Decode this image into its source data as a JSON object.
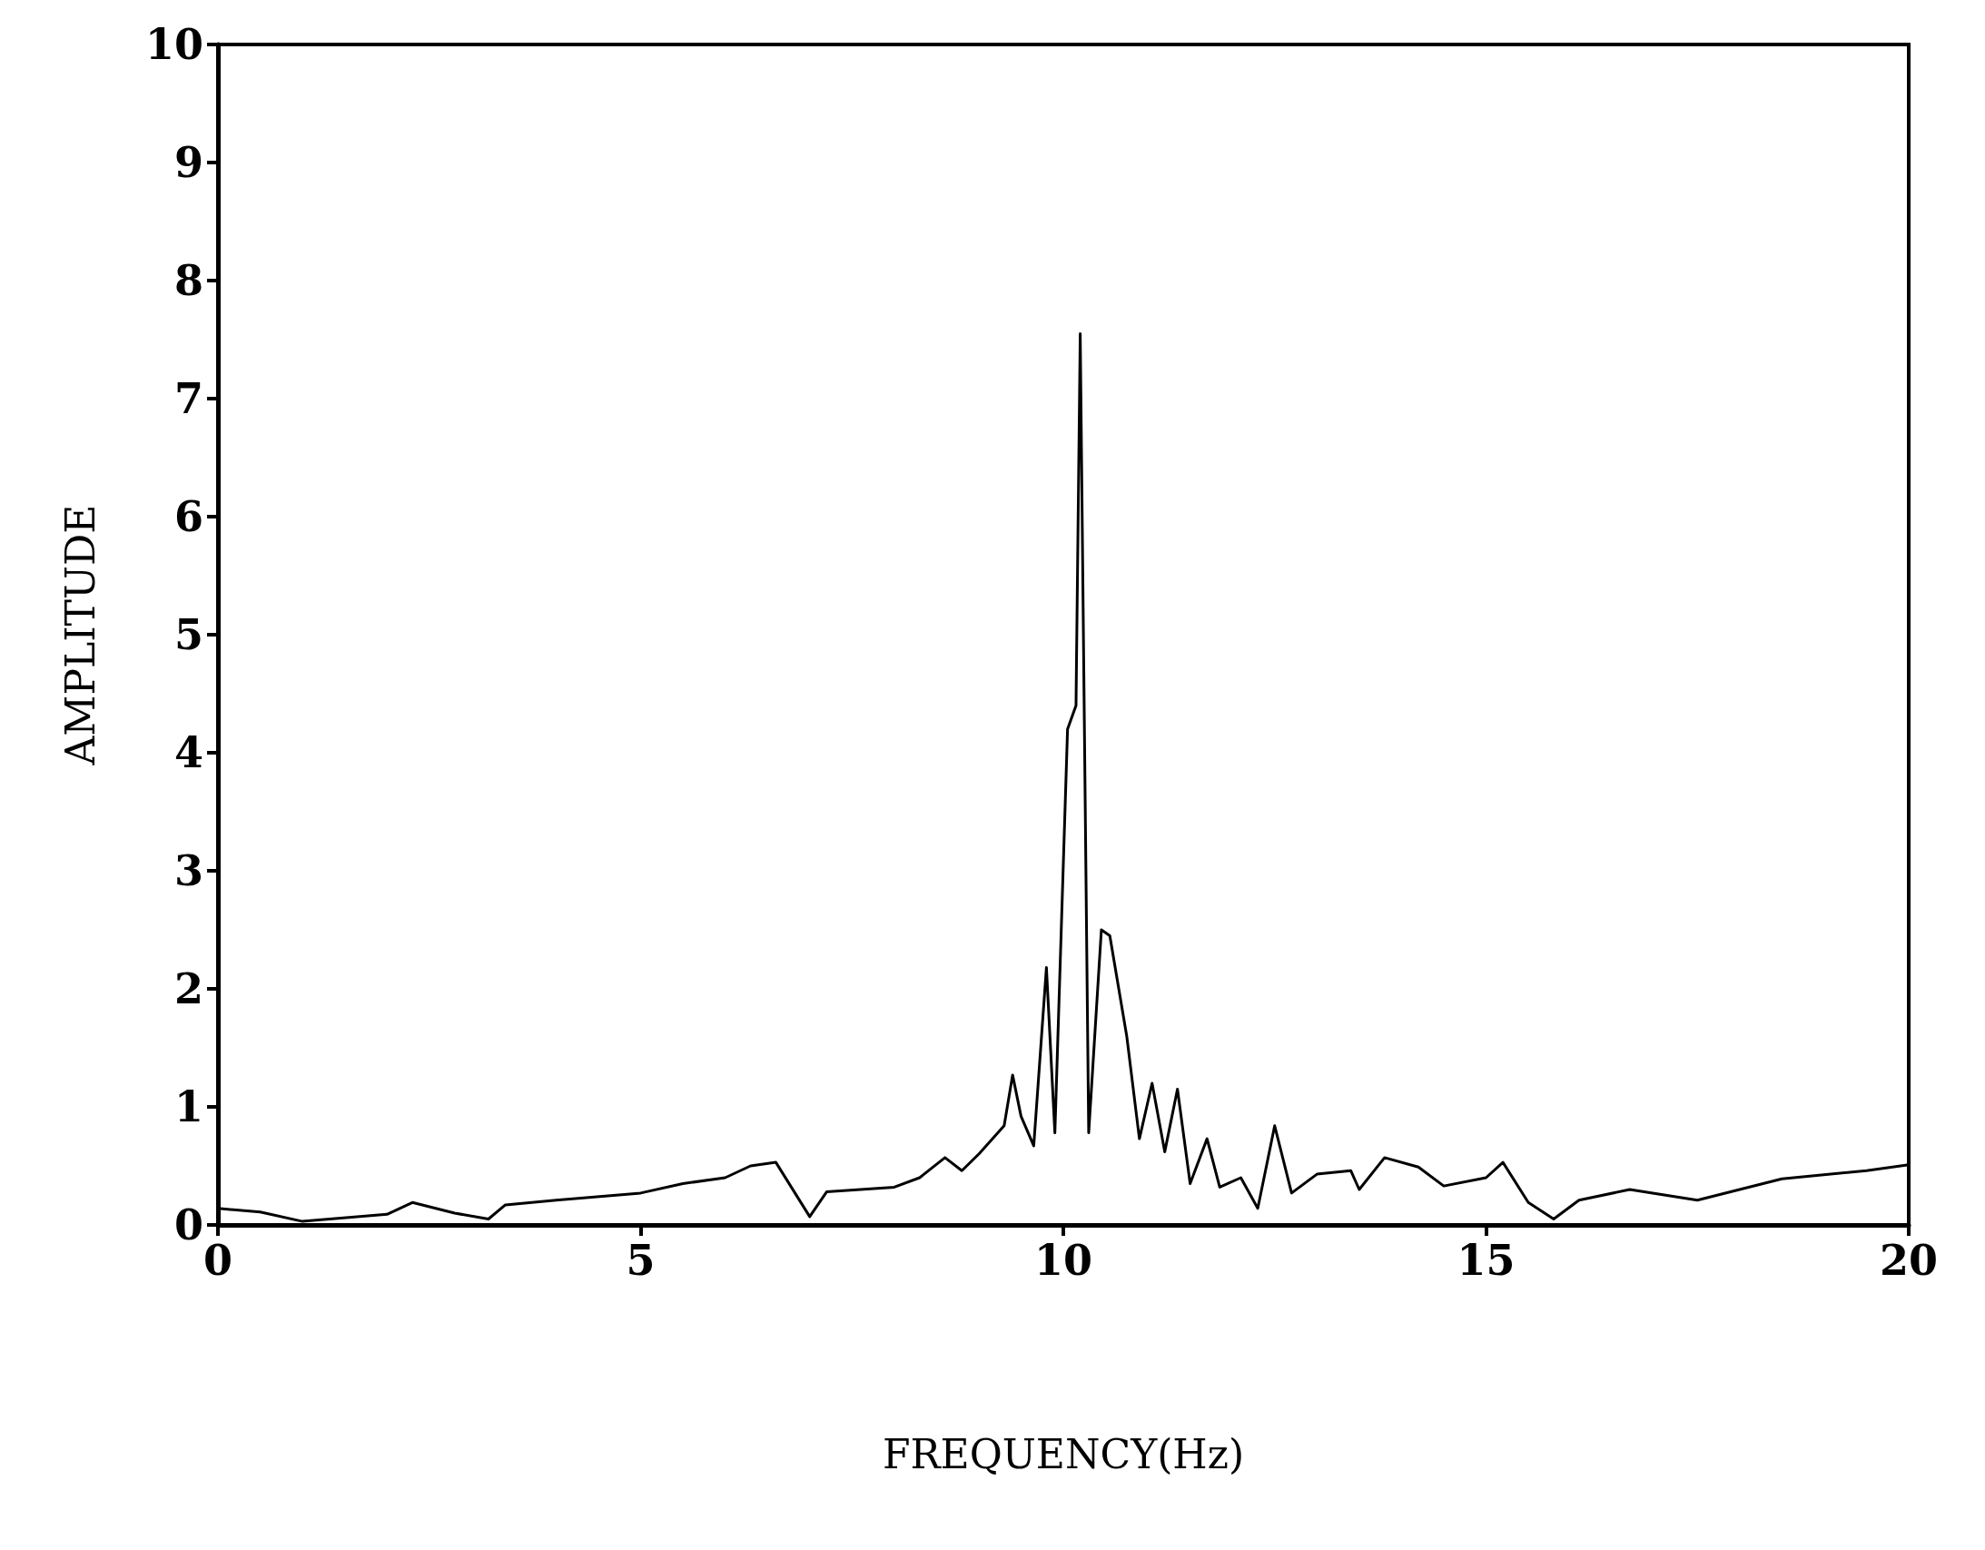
{
  "chart_data": {
    "type": "line",
    "xlabel": "FREQUENCY(Hz)",
    "ylabel": "AMPLITUDE",
    "xlim": [
      0,
      20
    ],
    "ylim": [
      0,
      10
    ],
    "xticks": [
      0,
      5,
      10,
      15,
      20
    ],
    "yticks": [
      0,
      1,
      2,
      3,
      4,
      5,
      6,
      7,
      8,
      9,
      10
    ],
    "grid": false,
    "marker": "none",
    "line_style": "solid",
    "series": [
      {
        "color": "#000000",
        "x": [
          0,
          0.5,
          1,
          2,
          2.3,
          2.8,
          3.2,
          3.4,
          4,
          5,
          5.5,
          6,
          6.3,
          6.6,
          7,
          7.2,
          8,
          8.3,
          8.6,
          8.8,
          9,
          9.3,
          9.4,
          9.5,
          9.65,
          9.8,
          9.9,
          10.05,
          10.15,
          10.2,
          10.3,
          10.45,
          10.55,
          10.75,
          10.9,
          11.05,
          11.2,
          11.35,
          11.5,
          11.7,
          11.85,
          12.1,
          12.3,
          12.5,
          12.7,
          13,
          13.4,
          13.5,
          13.8,
          14.2,
          14.5,
          15,
          15.2,
          15.5,
          15.8,
          16.1,
          16.7,
          17.5,
          18,
          18.5,
          19.5,
          20
        ],
        "values": [
          0.14,
          0.11,
          0.03,
          0.09,
          0.19,
          0.1,
          0.05,
          0.17,
          0.21,
          0.27,
          0.35,
          0.4,
          0.5,
          0.53,
          0.07,
          0.28,
          0.32,
          0.4,
          0.57,
          0.46,
          0.6,
          0.84,
          1.27,
          0.92,
          0.67,
          2.18,
          0.78,
          4.2,
          4.4,
          7.55,
          0.78,
          2.5,
          2.45,
          1.6,
          0.73,
          1.2,
          0.62,
          1.15,
          0.35,
          0.73,
          0.32,
          0.4,
          0.14,
          0.84,
          0.27,
          0.43,
          0.46,
          0.3,
          0.57,
          0.49,
          0.33,
          0.4,
          0.53,
          0.19,
          0.05,
          0.21,
          0.3,
          0.21,
          0.3,
          0.39,
          0.46,
          0.51
        ]
      }
    ]
  }
}
